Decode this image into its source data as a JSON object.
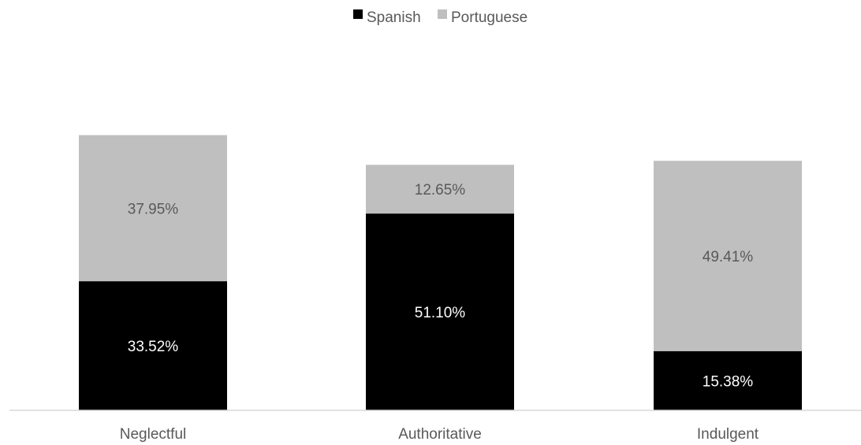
{
  "chart_data": {
    "type": "bar",
    "stacked": true,
    "categories": [
      "Neglectful",
      "Authoritative",
      "Indulgent"
    ],
    "series": [
      {
        "name": "Spanish",
        "color": "#000000",
        "values": [
          33.52,
          51.1,
          15.38
        ],
        "labels": [
          "33.52%",
          "51.10%",
          "15.38%"
        ],
        "label_color": "#ffffff"
      },
      {
        "name": "Portuguese",
        "color": "#bfbfbf",
        "values": [
          37.95,
          12.65,
          49.41
        ],
        "labels": [
          "37.95%",
          "12.65%",
          "49.41%"
        ],
        "label_color": "#595959"
      }
    ],
    "legend_position": "top",
    "ylim": [
      0,
      100
    ],
    "y_axis_visible": false,
    "grid": false
  }
}
